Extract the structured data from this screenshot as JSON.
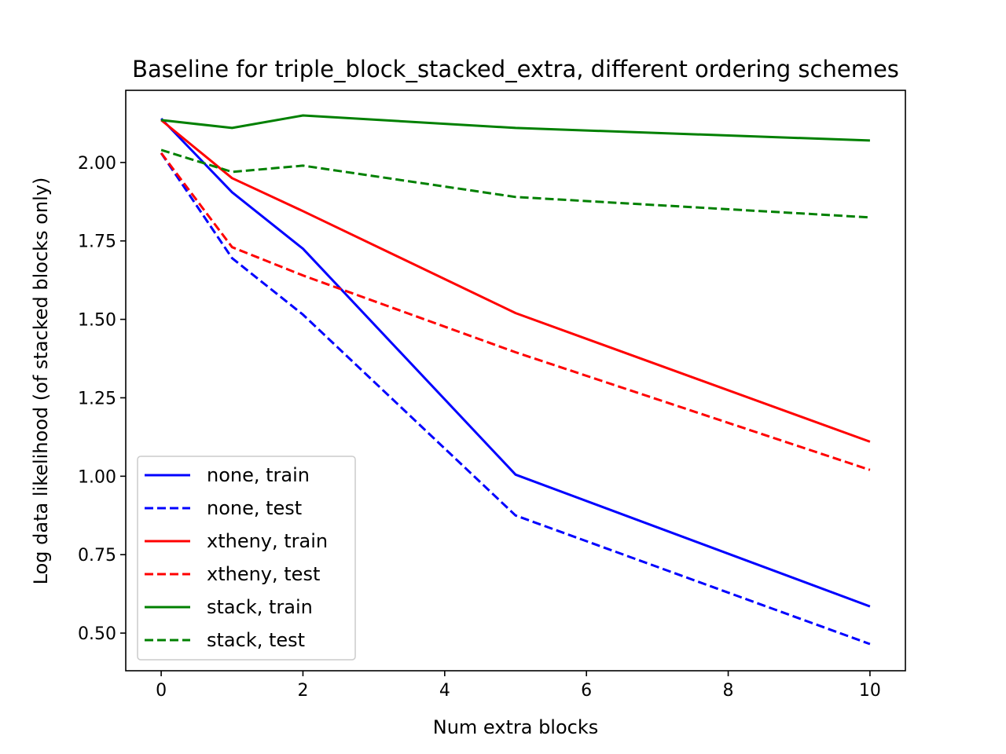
{
  "chart_data": {
    "type": "line",
    "title": "Baseline for triple_block_stacked_extra, different ordering schemes",
    "xlabel": "Num extra blocks",
    "ylabel": "Log data likelihood (of stacked blocks only)",
    "xlim": [
      -0.5,
      10.5
    ],
    "ylim": [
      0.38,
      2.23
    ],
    "xticks": [
      0,
      2,
      4,
      6,
      8,
      10
    ],
    "yticks": [
      0.5,
      0.75,
      1.0,
      1.25,
      1.5,
      1.75,
      2.0
    ],
    "xtick_labels": [
      "0",
      "2",
      "4",
      "6",
      "8",
      "10"
    ],
    "ytick_labels": [
      "0.50",
      "0.75",
      "1.00",
      "1.25",
      "1.50",
      "1.75",
      "2.00"
    ],
    "grid": false,
    "legend_position": "lower-left",
    "x": [
      0,
      1,
      2,
      5,
      10
    ],
    "series": [
      {
        "name": "none, train",
        "color": "#0000ff",
        "dash": "solid",
        "values": [
          2.14,
          1.905,
          1.725,
          1.005,
          0.585
        ]
      },
      {
        "name": "none, test",
        "color": "#0000ff",
        "dash": "dashed",
        "values": [
          2.03,
          1.695,
          1.515,
          0.875,
          0.465
        ]
      },
      {
        "name": "xtheny, train",
        "color": "#ff0000",
        "dash": "solid",
        "values": [
          2.135,
          1.95,
          1.845,
          1.52,
          1.11
        ]
      },
      {
        "name": "xtheny, test",
        "color": "#ff0000",
        "dash": "dashed",
        "values": [
          2.03,
          1.73,
          1.64,
          1.395,
          1.02
        ]
      },
      {
        "name": "stack, train",
        "color": "#008000",
        "dash": "solid",
        "values": [
          2.135,
          2.11,
          2.15,
          2.11,
          2.07
        ]
      },
      {
        "name": "stack, test",
        "color": "#008000",
        "dash": "dashed",
        "values": [
          2.04,
          1.97,
          1.99,
          1.89,
          1.825
        ]
      }
    ]
  }
}
